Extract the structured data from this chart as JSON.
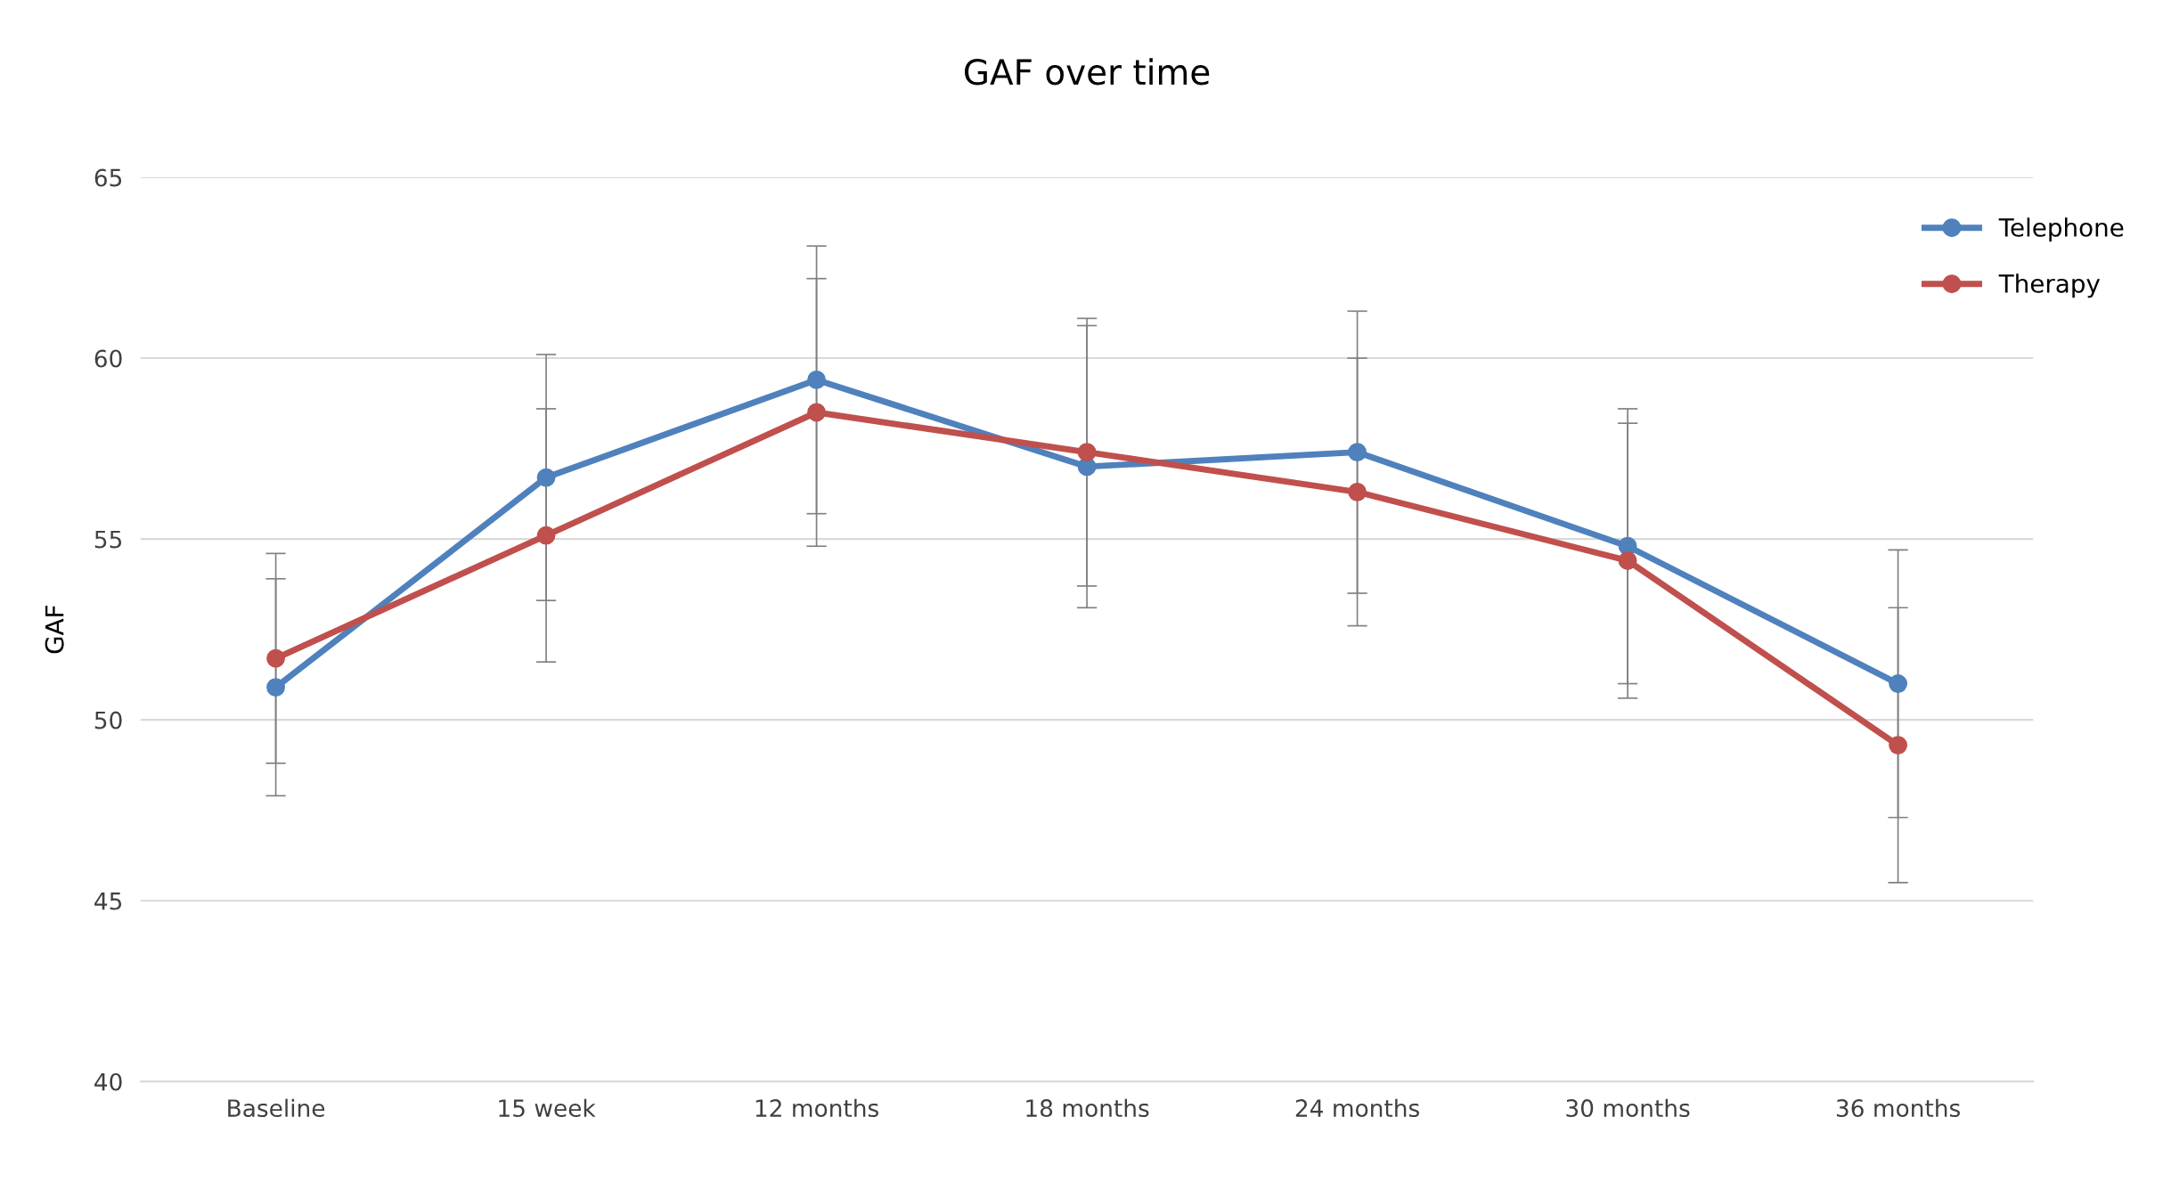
{
  "chart_data": {
    "type": "line",
    "title": "GAF over time",
    "ylabel": "GAF",
    "categories": [
      "Baseline",
      "15 week",
      "12 months",
      "18 months",
      "24 months",
      "30 months",
      "36 months"
    ],
    "series": [
      {
        "name": "Telephone",
        "color": "#4f81bd",
        "values": [
          50.9,
          56.7,
          59.4,
          57.0,
          57.4,
          54.8,
          51.0
        ],
        "errors": [
          3.0,
          3.4,
          3.7,
          3.9,
          3.9,
          3.8,
          3.7
        ]
      },
      {
        "name": "Therapy",
        "color": "#c0504d",
        "values": [
          51.7,
          55.1,
          58.5,
          57.4,
          56.3,
          54.4,
          49.3
        ],
        "errors": [
          2.9,
          3.5,
          3.7,
          3.7,
          3.7,
          3.8,
          3.8
        ]
      }
    ],
    "ylim": [
      40,
      65
    ],
    "yticks": [
      40,
      45,
      50,
      55,
      60,
      65
    ],
    "grid": "y",
    "legend": "top right",
    "marker": "circle",
    "line_style": "solid"
  }
}
